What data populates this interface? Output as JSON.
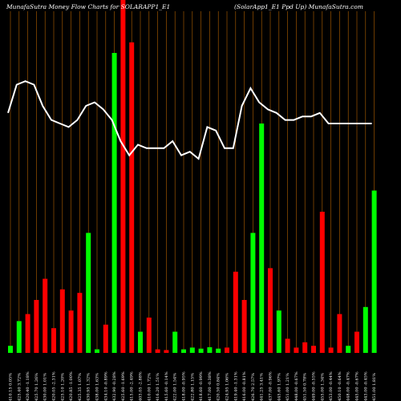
{
  "header": {
    "left": "MunafaSutra  Money Flow  Charts for SOLARAPP1_E1",
    "right": "(SolarApp1_E1 Ppd Up) MunafaSutra.com"
  },
  "colors": {
    "background": "#000000",
    "up": "#00ff00",
    "down": "#ff0000",
    "line": "#ffffff",
    "grid": "#b36200"
  },
  "chart_data": {
    "type": "bar",
    "y_axis_visible": false,
    "grid": "vertical",
    "categories": [
      "410.15 0.05%",
      "425.40 3.72%",
      "420.40 -1.18%",
      "425.70 1.26%",
      "430.00 1.01%",
      "420.05 -2.31%",
      "425.10 1.20%",
      "420.85 -1.00%",
      "425.35 1.07%",
      "430.95 1.32%",
      "438.00 1.63%",
      "434.10 -0.89%",
      "432.90 -0.28%",
      "425.60 -1.69%",
      "415.00 -2.49%",
      "403.05 -2.88%",
      "410.00 1.72%",
      "416.20 1.51%",
      "415.60 -0.14%",
      "422.00 1.54%",
      "418.00 -0.95%",
      "422.80 1.15%",
      "418.60 -0.99%",
      "417.00 -0.38%",
      "420.50 0.84%",
      "424.95 1.06%",
      "419.40 -1.31%",
      "416.00 -0.81%",
      "426.70 2.57%",
      "441.25 3.41%",
      "437.00 -0.96%",
      "445.60 1.97%",
      "451.00 1.21%",
      "448.00 -0.67%",
      "451.50 0.78%",
      "449.00 -0.55%",
      "455.00 1.34%",
      "453.00 -0.44%",
      "450.10 -0.64%",
      "448.00 -0.47%",
      "445.00 -0.67%",
      "443.00 -0.45%",
      "451.00 1.81%"
    ],
    "series": [
      {
        "role": "money_flow_bars",
        "values": [
          2,
          9,
          11,
          15,
          21,
          7,
          18,
          12,
          17,
          34,
          1,
          8,
          85,
          100,
          88,
          6,
          10,
          1,
          0.8,
          6,
          1,
          1.5,
          1.2,
          1.6,
          1.2,
          1.5,
          23,
          15,
          34,
          65,
          24,
          12,
          4,
          1.5,
          3,
          2,
          40,
          1.5,
          11,
          2,
          6,
          13,
          46
        ],
        "colors": [
          "g",
          "g",
          "r",
          "r",
          "r",
          "r",
          "r",
          "r",
          "r",
          "g",
          "g",
          "r",
          "g",
          "r",
          "r",
          "g",
          "r",
          "r",
          "r",
          "g",
          "g",
          "g",
          "g",
          "g",
          "g",
          "r",
          "r",
          "r",
          "g",
          "g",
          "r",
          "g",
          "r",
          "r",
          "r",
          "r",
          "r",
          "r",
          "r",
          "g",
          "r",
          "g",
          "g"
        ]
      },
      {
        "role": "price_line",
        "values": [
          68,
          76,
          77,
          76,
          70,
          66,
          65,
          64,
          66,
          70,
          71,
          69,
          66,
          60,
          56,
          59,
          58,
          58,
          58,
          60,
          56,
          57,
          55,
          64,
          63,
          58,
          58,
          70,
          75,
          71,
          69,
          68,
          66,
          66,
          67,
          67,
          68,
          65,
          65,
          65,
          65,
          65,
          65
        ]
      }
    ],
    "ylim": [
      0,
      100
    ]
  }
}
